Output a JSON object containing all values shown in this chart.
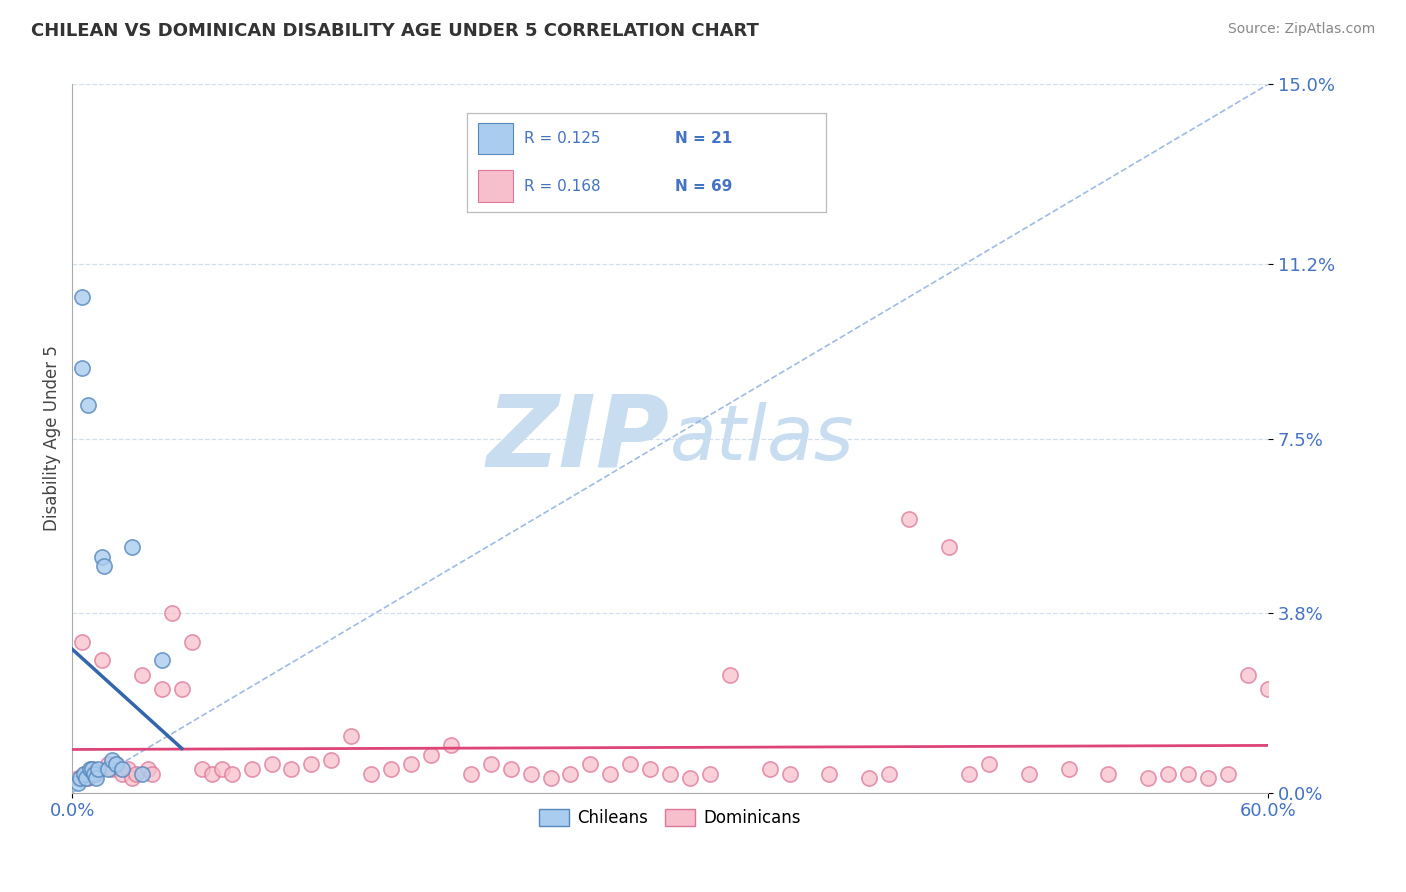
{
  "title": "CHILEAN VS DOMINICAN DISABILITY AGE UNDER 5 CORRELATION CHART",
  "source": "Source: ZipAtlas.com",
  "ylabel": "Disability Age Under 5",
  "ytick_values": [
    0.0,
    3.8,
    7.5,
    11.2,
    15.0
  ],
  "xlim": [
    0.0,
    60.0
  ],
  "ylim": [
    0.0,
    15.0
  ],
  "legend_r_chilean": "R = 0.125",
  "legend_n_chilean": "N = 21",
  "legend_r_dominican": "R = 0.168",
  "legend_n_dominican": "N = 69",
  "chilean_color": "#aaccee",
  "dominican_color": "#f7bfcc",
  "chilean_edge_color": "#5588bb",
  "dominican_edge_color": "#dd7799",
  "chilean_line_color": "#3366aa",
  "dominican_line_color": "#dd4477",
  "diagonal_color": "#88aadd",
  "watermark_zip_color": "#c8ddf0",
  "watermark_atlas_color": "#c8ddf0",
  "grid_color": "#ccddee",
  "title_color": "#333333",
  "tick_color": "#4472C4",
  "chileans_x": [
    0.3,
    0.4,
    0.5,
    0.5,
    0.6,
    0.7,
    0.8,
    0.9,
    1.0,
    1.1,
    1.2,
    1.3,
    1.5,
    1.6,
    1.8,
    2.0,
    2.2,
    2.5,
    3.0,
    3.5,
    4.5
  ],
  "chileans_y": [
    0.2,
    0.3,
    10.5,
    9.0,
    0.4,
    0.3,
    8.2,
    0.5,
    0.5,
    0.4,
    0.3,
    0.5,
    5.0,
    4.8,
    0.5,
    0.7,
    0.6,
    0.5,
    5.2,
    0.4,
    2.8
  ],
  "dominicans_x": [
    0.3,
    0.5,
    0.6,
    0.8,
    1.0,
    1.2,
    1.5,
    1.8,
    2.0,
    2.2,
    2.5,
    2.8,
    3.0,
    3.2,
    3.5,
    3.8,
    4.0,
    4.5,
    5.0,
    5.5,
    6.0,
    6.5,
    7.0,
    7.5,
    8.0,
    9.0,
    10.0,
    11.0,
    12.0,
    13.0,
    14.0,
    15.0,
    16.0,
    17.0,
    18.0,
    19.0,
    20.0,
    21.0,
    22.0,
    23.0,
    24.0,
    25.0,
    26.0,
    27.0,
    28.0,
    29.0,
    30.0,
    31.0,
    32.0,
    33.0,
    35.0,
    36.0,
    38.0,
    40.0,
    41.0,
    42.0,
    44.0,
    45.0,
    46.0,
    48.0,
    50.0,
    52.0,
    54.0,
    55.0,
    56.0,
    57.0,
    58.0,
    59.0,
    60.0
  ],
  "dominicans_y": [
    0.3,
    3.2,
    0.4,
    0.3,
    0.5,
    0.4,
    2.8,
    0.6,
    0.5,
    0.6,
    0.4,
    0.5,
    0.3,
    0.4,
    2.5,
    0.5,
    0.4,
    2.2,
    3.8,
    2.2,
    3.2,
    0.5,
    0.4,
    0.5,
    0.4,
    0.5,
    0.6,
    0.5,
    0.6,
    0.7,
    1.2,
    0.4,
    0.5,
    0.6,
    0.8,
    1.0,
    0.4,
    0.6,
    0.5,
    0.4,
    0.3,
    0.4,
    0.6,
    0.4,
    0.6,
    0.5,
    0.4,
    0.3,
    0.4,
    2.5,
    0.5,
    0.4,
    0.4,
    0.3,
    0.4,
    5.8,
    5.2,
    0.4,
    0.6,
    0.4,
    0.5,
    0.4,
    0.3,
    0.4,
    0.4,
    0.3,
    0.4,
    2.5,
    2.2
  ]
}
